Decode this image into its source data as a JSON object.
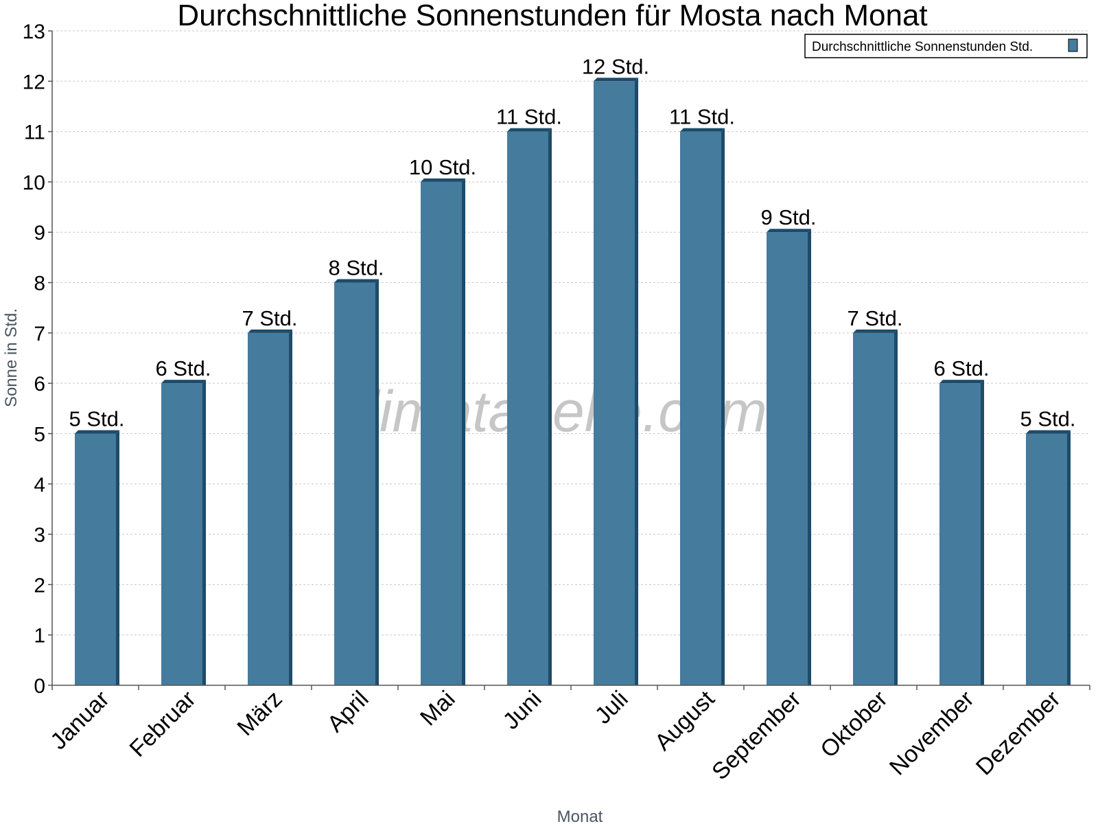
{
  "chart_data": {
    "type": "bar",
    "title": "Durchschnittliche Sonnenstunden für Mosta nach Monat",
    "xlabel": "Monat",
    "ylabel": "Sonne in Std.",
    "ylim": [
      0,
      13
    ],
    "yticks": [
      0,
      1,
      2,
      3,
      4,
      5,
      6,
      7,
      8,
      9,
      10,
      11,
      12,
      13
    ],
    "grid": true,
    "legend_position": "top-right",
    "categories": [
      "Januar",
      "Februar",
      "März",
      "April",
      "Mai",
      "Juni",
      "Juli",
      "August",
      "September",
      "Oktober",
      "November",
      "Dezember"
    ],
    "series": [
      {
        "name": "Durchschnittliche Sonnenstunden Std.",
        "values": [
          5,
          6,
          7,
          8,
          10,
          11,
          12,
          11,
          9,
          7,
          6,
          5
        ],
        "labels": [
          "5 Std.",
          "6 Std.",
          "7 Std.",
          "8 Std.",
          "10 Std.",
          "11 Std.",
          "12 Std.",
          "11 Std.",
          "9 Std.",
          "7 Std.",
          "6 Std.",
          "5 Std."
        ],
        "color": "#457b9d",
        "edge_color": "#1d4b6a"
      }
    ],
    "watermark": "klimatabelle.com"
  }
}
